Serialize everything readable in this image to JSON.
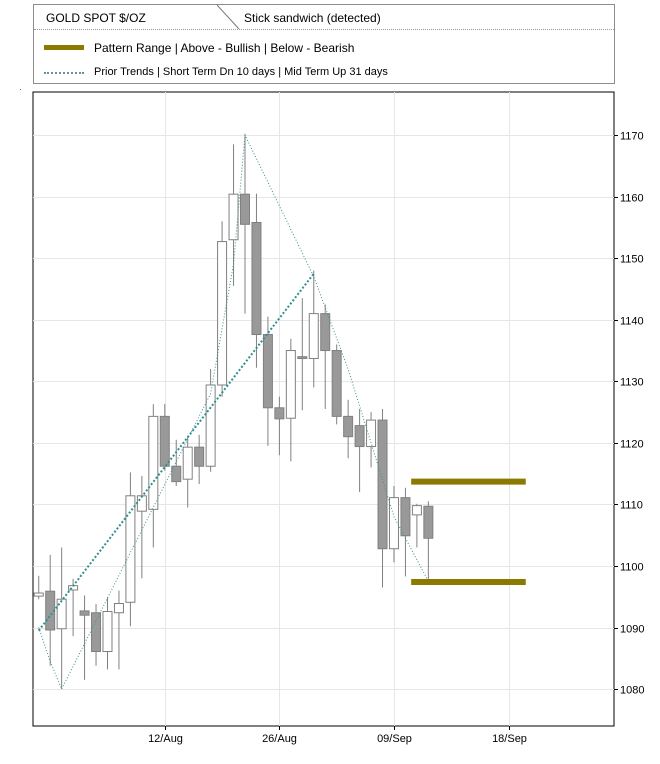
{
  "legend": {
    "title": "GOLD SPOT $/OZ",
    "subtitle": "Stick sandwich (detected)",
    "items": [
      {
        "label": "Pattern Range | Above - Bullish | Below - Bearish",
        "color": "#8c7a00",
        "style": "solid"
      },
      {
        "label": "Prior Trends | Short Term Dn 10 days | Mid Term Up 31 days",
        "color": "#3a8f8f",
        "style": "dotted"
      }
    ]
  },
  "chart_data": {
    "type": "candlestick",
    "title": "GOLD SPOT $/OZ",
    "annotation": "Stick sandwich (detected)",
    "y_axis": {
      "position": "right",
      "ylim": [
        1074,
        1177
      ],
      "ticks": [
        1080,
        1090,
        1100,
        1110,
        1120,
        1130,
        1140,
        1150,
        1160,
        1170
      ]
    },
    "x_axis": {
      "ticks": [
        {
          "label": "12/Aug",
          "index": 11
        },
        {
          "label": "26/Aug",
          "index": 21
        },
        {
          "label": "09/Sep",
          "index": 31
        },
        {
          "label": "18/Sep",
          "index": 41
        }
      ],
      "xlim": [
        -0.5,
        50.2
      ]
    },
    "bullish_color": "#ffffff",
    "bearish_color": "#999999",
    "candles": [
      {
        "o": 1095.1,
        "h": 1098.4,
        "l": 1094.6,
        "c": 1095.6
      },
      {
        "o": 1095.9,
        "h": 1101.8,
        "l": 1083.8,
        "c": 1089.6
      },
      {
        "o": 1089.8,
        "h": 1103.0,
        "l": 1080.0,
        "c": 1094.6
      },
      {
        "o": 1096.1,
        "h": 1097.9,
        "l": 1088.6,
        "c": 1096.8
      },
      {
        "o": 1092.7,
        "h": 1095.2,
        "l": 1081.5,
        "c": 1092.0
      },
      {
        "o": 1092.4,
        "h": 1093.8,
        "l": 1083.8,
        "c": 1086.1
      },
      {
        "o": 1086.1,
        "h": 1094.9,
        "l": 1083.2,
        "c": 1092.6
      },
      {
        "o": 1092.4,
        "h": 1096.0,
        "l": 1083.2,
        "c": 1093.9
      },
      {
        "o": 1094.1,
        "h": 1115.2,
        "l": 1090.2,
        "c": 1111.4
      },
      {
        "o": 1108.9,
        "h": 1114.6,
        "l": 1098.0,
        "c": 1111.4
      },
      {
        "o": 1109.2,
        "h": 1126.3,
        "l": 1103.0,
        "c": 1124.3
      },
      {
        "o": 1124.3,
        "h": 1126.3,
        "l": 1115.5,
        "c": 1116.2
      },
      {
        "o": 1116.2,
        "h": 1120.5,
        "l": 1113.0,
        "c": 1113.7
      },
      {
        "o": 1114.1,
        "h": 1121.0,
        "l": 1109.5,
        "c": 1119.3
      },
      {
        "o": 1119.3,
        "h": 1121.3,
        "l": 1113.3,
        "c": 1116.2
      },
      {
        "o": 1116.2,
        "h": 1132.0,
        "l": 1115.3,
        "c": 1129.4
      },
      {
        "o": 1129.4,
        "h": 1156.0,
        "l": 1127.5,
        "c": 1152.7
      },
      {
        "o": 1153.0,
        "h": 1168.5,
        "l": 1145.5,
        "c": 1160.4
      },
      {
        "o": 1160.4,
        "h": 1170.2,
        "l": 1141.0,
        "c": 1155.5
      },
      {
        "o": 1155.8,
        "h": 1160.5,
        "l": 1132.2,
        "c": 1137.6
      },
      {
        "o": 1137.6,
        "h": 1140.5,
        "l": 1119.5,
        "c": 1125.7
      },
      {
        "o": 1125.7,
        "h": 1127.5,
        "l": 1118.0,
        "c": 1123.9
      },
      {
        "o": 1124.0,
        "h": 1136.9,
        "l": 1117.0,
        "c": 1135.0
      },
      {
        "o": 1134.0,
        "h": 1143.5,
        "l": 1125.3,
        "c": 1133.7
      },
      {
        "o": 1133.7,
        "h": 1148.0,
        "l": 1129.0,
        "c": 1141.0
      },
      {
        "o": 1141.0,
        "h": 1142.5,
        "l": 1125.5,
        "c": 1135.0
      },
      {
        "o": 1135.0,
        "h": 1136.0,
        "l": 1123.0,
        "c": 1124.3
      },
      {
        "o": 1124.3,
        "h": 1127.0,
        "l": 1117.5,
        "c": 1121.0
      },
      {
        "o": 1122.8,
        "h": 1125.5,
        "l": 1112.0,
        "c": 1119.4
      },
      {
        "o": 1119.4,
        "h": 1125.0,
        "l": 1116.0,
        "c": 1123.7
      },
      {
        "o": 1123.7,
        "h": 1125.5,
        "l": 1096.5,
        "c": 1102.8
      },
      {
        "o": 1102.8,
        "h": 1113.0,
        "l": 1100.6,
        "c": 1111.1
      },
      {
        "o": 1111.1,
        "h": 1112.7,
        "l": 1098.3,
        "c": 1104.9
      },
      {
        "o": 1108.3,
        "h": 1110.1,
        "l": 1103.0,
        "c": 1109.8
      },
      {
        "o": 1109.7,
        "h": 1110.5,
        "l": 1097.5,
        "c": 1104.5
      }
    ],
    "pattern_range": {
      "upper": 1113.7,
      "lower": 1097.4,
      "from_index": 32.5,
      "to_index": 42.5,
      "color": "#8c7a00"
    },
    "trend_lines": [
      {
        "name": "Short Term Dn 10 days",
        "color": "#3a8f8f",
        "points": [
          [
            0,
            1090
          ],
          [
            1,
            1084.5
          ],
          [
            2,
            1080
          ],
          [
            15,
            1128
          ],
          [
            17,
            1149
          ],
          [
            18,
            1170
          ],
          [
            24,
            1147
          ],
          [
            27,
            1132
          ],
          [
            31,
            1108
          ],
          [
            34,
            1097.5
          ]
        ]
      },
      {
        "name": "Mid Term Up 31 days",
        "color": "#2f8f8f",
        "points": [
          [
            0,
            1089.5
          ],
          [
            24,
            1147.5
          ]
        ]
      }
    ]
  }
}
